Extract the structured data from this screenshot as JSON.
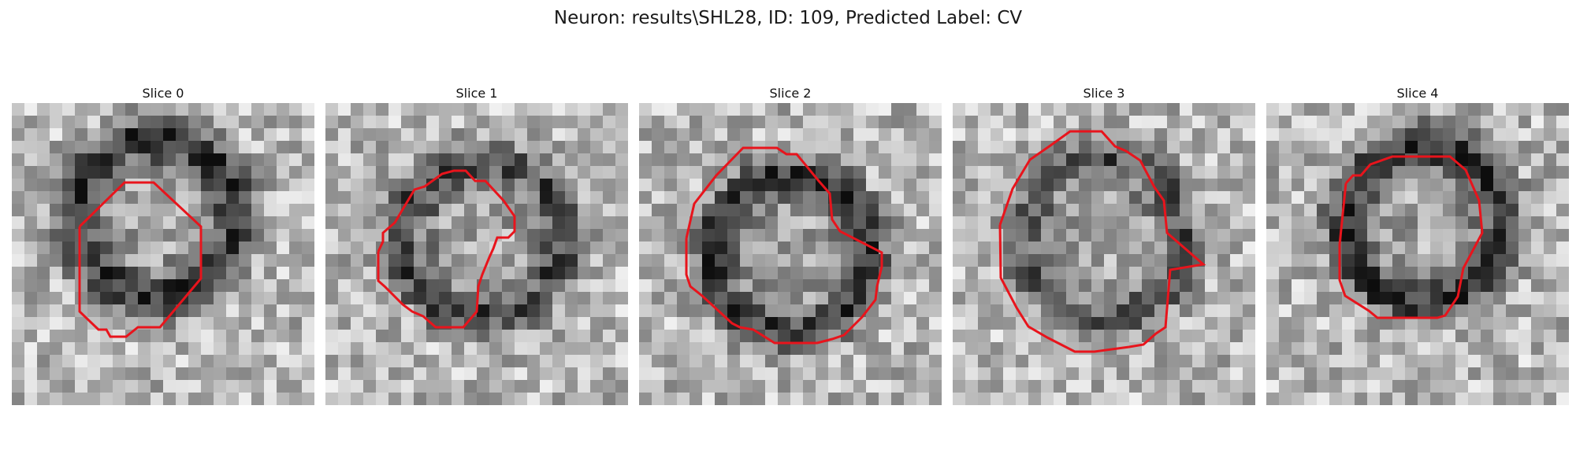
{
  "figure": {
    "suptitle": "Neuron: results\\SHL28, ID: 109, Predicted Label: CV",
    "contour_color": "#e8141c",
    "colormap": "gray"
  },
  "slices": [
    {
      "title": "Slice 0",
      "center": [
        0.48,
        0.38
      ],
      "darkness": 0.55
    },
    {
      "title": "Slice 1",
      "center": [
        0.52,
        0.45
      ],
      "darkness": 0.45
    },
    {
      "title": "Slice 2",
      "center": [
        0.5,
        0.5
      ],
      "darkness": 0.5
    },
    {
      "title": "Slice 3",
      "center": [
        0.5,
        0.45
      ],
      "darkness": 0.4
    },
    {
      "title": "Slice 4",
      "center": [
        0.52,
        0.4
      ],
      "darkness": 0.55
    }
  ]
}
